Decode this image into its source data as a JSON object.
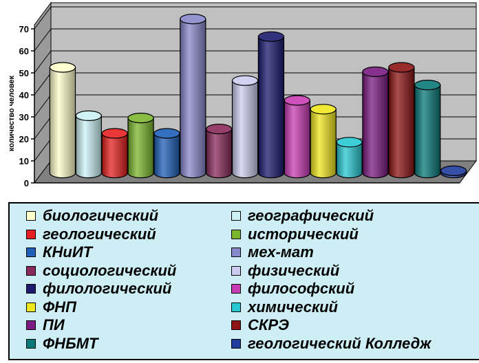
{
  "chart_data": {
    "type": "bar",
    "style": "3d-cylinder",
    "ylabel": "количество человек",
    "ylim": [
      0,
      70
    ],
    "yticks": [
      0,
      10,
      20,
      30,
      40,
      50,
      60,
      70
    ],
    "grid": true,
    "legend_position": "bottom",
    "series": [
      {
        "name": "биологический",
        "value": 48,
        "color": "#ffffcc"
      },
      {
        "name": "географический",
        "value": 26,
        "color": "#ccf2f5"
      },
      {
        "name": "геологический",
        "value": 18,
        "color": "#e62020"
      },
      {
        "name": "исторический",
        "value": 25,
        "color": "#7bb52e"
      },
      {
        "name": "КНиИТ",
        "value": 18,
        "color": "#1f5fb8"
      },
      {
        "name": "мех-мат",
        "value": 70,
        "color": "#8888cc"
      },
      {
        "name": "социологический",
        "value": 20,
        "color": "#8a2a5a"
      },
      {
        "name": "физический",
        "value": 42,
        "color": "#ccccf0"
      },
      {
        "name": "филологический",
        "value": 62,
        "color": "#1a1a6e"
      },
      {
        "name": "философский",
        "value": 33,
        "color": "#c83cb4"
      },
      {
        "name": "ФНП",
        "value": 29,
        "color": "#f0e61e"
      },
      {
        "name": "химический",
        "value": 14,
        "color": "#28c8d2"
      },
      {
        "name": "ПИ",
        "value": 46,
        "color": "#7a1a82"
      },
      {
        "name": "СКРЭ",
        "value": 48,
        "color": "#8c1414"
      },
      {
        "name": "ФНБМТ",
        "value": 40,
        "color": "#0a7878"
      },
      {
        "name": "геологический Колледж",
        "value": 1,
        "color": "#1e3c9c"
      }
    ]
  },
  "colors": {
    "wall": "#c0c0c0",
    "floor": "#808080",
    "legend_bg": "#cdeef4"
  }
}
